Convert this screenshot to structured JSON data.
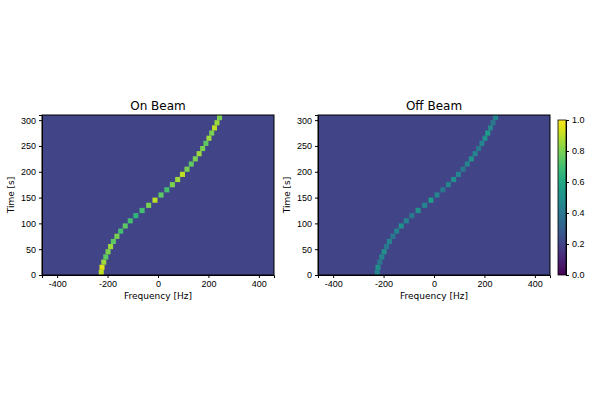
{
  "chart_data": [
    {
      "type": "heatmap",
      "title": "On Beam",
      "xlabel": "Frequency [Hz]",
      "ylabel": "Time [s]",
      "xlim": [
        -460,
        460
      ],
      "ylim": [
        0,
        310
      ],
      "xticks": [
        -400,
        -200,
        0,
        200,
        400
      ],
      "yticks": [
        0,
        50,
        100,
        150,
        200,
        250,
        300
      ],
      "color": "viridis",
      "background": 0.2,
      "cell_width": 20,
      "cell_height": 10,
      "cells": {
        "x": [
          -225,
          -222,
          -215,
          -207,
          -198,
          -188,
          -177,
          -163,
          -148,
          -130,
          -110,
          -88,
          -63,
          -37,
          -12,
          12,
          35,
          57,
          78,
          97,
          115,
          132,
          148,
          163,
          177,
          190,
          202,
          213,
          224,
          234,
          244
        ],
        "y": [
          5,
          15,
          25,
          35,
          45,
          55,
          65,
          75,
          85,
          95,
          105,
          115,
          125,
          135,
          145,
          155,
          165,
          175,
          185,
          195,
          205,
          215,
          225,
          235,
          245,
          255,
          265,
          275,
          285,
          295,
          305
        ],
        "values": [
          0.9,
          0.95,
          0.85,
          0.75,
          0.8,
          0.85,
          0.75,
          0.8,
          0.7,
          0.75,
          0.7,
          0.65,
          0.7,
          0.8,
          0.9,
          0.75,
          0.7,
          0.8,
          0.85,
          0.9,
          0.8,
          0.75,
          0.8,
          0.85,
          0.8,
          0.75,
          0.85,
          0.8,
          0.9,
          0.85,
          0.8
        ]
      }
    },
    {
      "type": "heatmap",
      "title": "Off Beam",
      "xlabel": "Frequency [Hz]",
      "ylabel": "Time [s]",
      "xlim": [
        -460,
        460
      ],
      "ylim": [
        0,
        310
      ],
      "xticks": [
        -400,
        -200,
        0,
        200,
        400
      ],
      "yticks": [
        0,
        50,
        100,
        150,
        200,
        250,
        300
      ],
      "color": "viridis",
      "background": 0.2,
      "cell_width": 20,
      "cell_height": 10,
      "cells": {
        "x": [
          -225,
          -222,
          -215,
          -207,
          -198,
          -188,
          -177,
          -163,
          -148,
          -130,
          -110,
          -88,
          -63,
          -37,
          -12,
          12,
          35,
          57,
          78,
          97,
          115,
          132,
          148,
          163,
          177,
          190,
          202,
          213,
          224,
          234,
          244
        ],
        "y": [
          5,
          15,
          25,
          35,
          45,
          55,
          65,
          75,
          85,
          95,
          105,
          115,
          125,
          135,
          145,
          155,
          165,
          175,
          185,
          195,
          205,
          215,
          225,
          235,
          245,
          255,
          265,
          275,
          285,
          295,
          305
        ],
        "values": [
          0.45,
          0.5,
          0.4,
          0.45,
          0.5,
          0.4,
          0.45,
          0.4,
          0.45,
          0.5,
          0.45,
          0.4,
          0.5,
          0.45,
          0.55,
          0.45,
          0.4,
          0.45,
          0.5,
          0.45,
          0.4,
          0.45,
          0.5,
          0.45,
          0.4,
          0.45,
          0.5,
          0.55,
          0.45,
          0.4,
          0.45
        ]
      },
      "colorbar": {
        "range": [
          0,
          1
        ],
        "ticks": [
          {
            "value": 0,
            "label": "0.0"
          },
          {
            "value": 0.2,
            "label": "0.2"
          },
          {
            "value": 0.4,
            "label": "0.4"
          },
          {
            "value": 0.6,
            "label": "0.6"
          },
          {
            "value": 0.8,
            "label": "0.8"
          },
          {
            "value": 1,
            "label": "1.0"
          }
        ]
      }
    }
  ]
}
